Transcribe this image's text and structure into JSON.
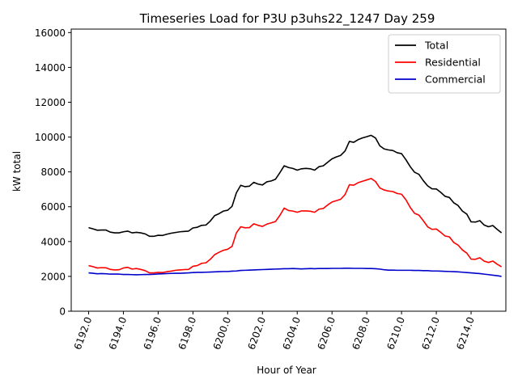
{
  "chart_data": {
    "type": "line",
    "title": "Timeseries Load for P3U p3uhs22_1247  Day 259",
    "xlabel": "Hour of Year",
    "ylabel": "kW total",
    "xlim": [
      6191.0,
      6216.0
    ],
    "ylim": [
      0,
      16200
    ],
    "xticks": [
      6192,
      6194,
      6196,
      6198,
      6200,
      6202,
      6204,
      6206,
      6208,
      6210,
      6212,
      6214
    ],
    "xtick_labels": [
      "6192.0",
      "6194.0",
      "6196.0",
      "6198.0",
      "6200.0",
      "6202.0",
      "6204.0",
      "6206.0",
      "6208.0",
      "6210.0",
      "6212.0",
      "6214.0"
    ],
    "yticks": [
      0,
      2000,
      4000,
      6000,
      8000,
      10000,
      12000,
      14000,
      16000
    ],
    "ytick_labels": [
      "0",
      "2000",
      "4000",
      "6000",
      "8000",
      "10000",
      "12000",
      "14000",
      "16000"
    ],
    "legend_position": "top-right",
    "x_start": 6192.0,
    "x_step": 0.25,
    "series": [
      {
        "name": "Total",
        "color": "#000000",
        "values": [
          4800,
          4730,
          4650,
          4660,
          4660,
          4540,
          4500,
          4500,
          4560,
          4600,
          4500,
          4530,
          4500,
          4440,
          4300,
          4300,
          4360,
          4350,
          4420,
          4480,
          4520,
          4560,
          4580,
          4600,
          4780,
          4820,
          4930,
          4950,
          5180,
          5490,
          5600,
          5750,
          5800,
          6020,
          6800,
          7230,
          7150,
          7180,
          7400,
          7300,
          7250,
          7430,
          7480,
          7580,
          7950,
          8350,
          8250,
          8200,
          8100,
          8180,
          8200,
          8180,
          8100,
          8300,
          8350,
          8550,
          8750,
          8860,
          8950,
          9200,
          9750,
          9700,
          9850,
          9950,
          10020,
          10100,
          9950,
          9500,
          9320,
          9260,
          9230,
          9100,
          9050,
          8700,
          8300,
          7980,
          7860,
          7500,
          7200,
          7030,
          7020,
          6830,
          6600,
          6530,
          6230,
          6070,
          5750,
          5580,
          5130,
          5120,
          5200,
          4950,
          4850,
          4920,
          4700,
          4500
        ]
      },
      {
        "name": "Residential",
        "color": "#ff0000",
        "values": [
          2620,
          2560,
          2480,
          2500,
          2490,
          2400,
          2370,
          2380,
          2480,
          2520,
          2420,
          2450,
          2400,
          2330,
          2200,
          2200,
          2230,
          2220,
          2270,
          2300,
          2350,
          2370,
          2390,
          2400,
          2580,
          2620,
          2750,
          2780,
          2980,
          3250,
          3380,
          3500,
          3560,
          3720,
          4500,
          4850,
          4790,
          4800,
          5020,
          4930,
          4870,
          5000,
          5070,
          5150,
          5500,
          5920,
          5780,
          5750,
          5680,
          5760,
          5760,
          5740,
          5680,
          5860,
          5900,
          6100,
          6270,
          6350,
          6430,
          6700,
          7260,
          7240,
          7380,
          7460,
          7540,
          7620,
          7450,
          7080,
          6960,
          6900,
          6870,
          6760,
          6720,
          6400,
          5960,
          5620,
          5520,
          5200,
          4850,
          4700,
          4720,
          4530,
          4320,
          4270,
          3950,
          3800,
          3520,
          3340,
          2990,
          2980,
          3070,
          2880,
          2800,
          2880,
          2700,
          2550
        ]
      },
      {
        "name": "Commercial",
        "color": "#0000cc",
        "values": [
          2200,
          2180,
          2150,
          2160,
          2150,
          2130,
          2130,
          2130,
          2110,
          2110,
          2100,
          2090,
          2100,
          2110,
          2110,
          2120,
          2140,
          2150,
          2160,
          2170,
          2180,
          2180,
          2190,
          2200,
          2220,
          2230,
          2230,
          2240,
          2250,
          2260,
          2270,
          2280,
          2280,
          2300,
          2310,
          2340,
          2350,
          2360,
          2370,
          2380,
          2390,
          2400,
          2410,
          2420,
          2430,
          2440,
          2440,
          2450,
          2440,
          2430,
          2440,
          2450,
          2440,
          2450,
          2450,
          2450,
          2460,
          2460,
          2460,
          2470,
          2470,
          2460,
          2460,
          2460,
          2450,
          2450,
          2440,
          2420,
          2380,
          2360,
          2360,
          2350,
          2350,
          2350,
          2350,
          2340,
          2340,
          2330,
          2330,
          2310,
          2310,
          2300,
          2290,
          2280,
          2270,
          2260,
          2240,
          2220,
          2200,
          2180,
          2160,
          2130,
          2100,
          2070,
          2040,
          2000
        ]
      }
    ]
  }
}
